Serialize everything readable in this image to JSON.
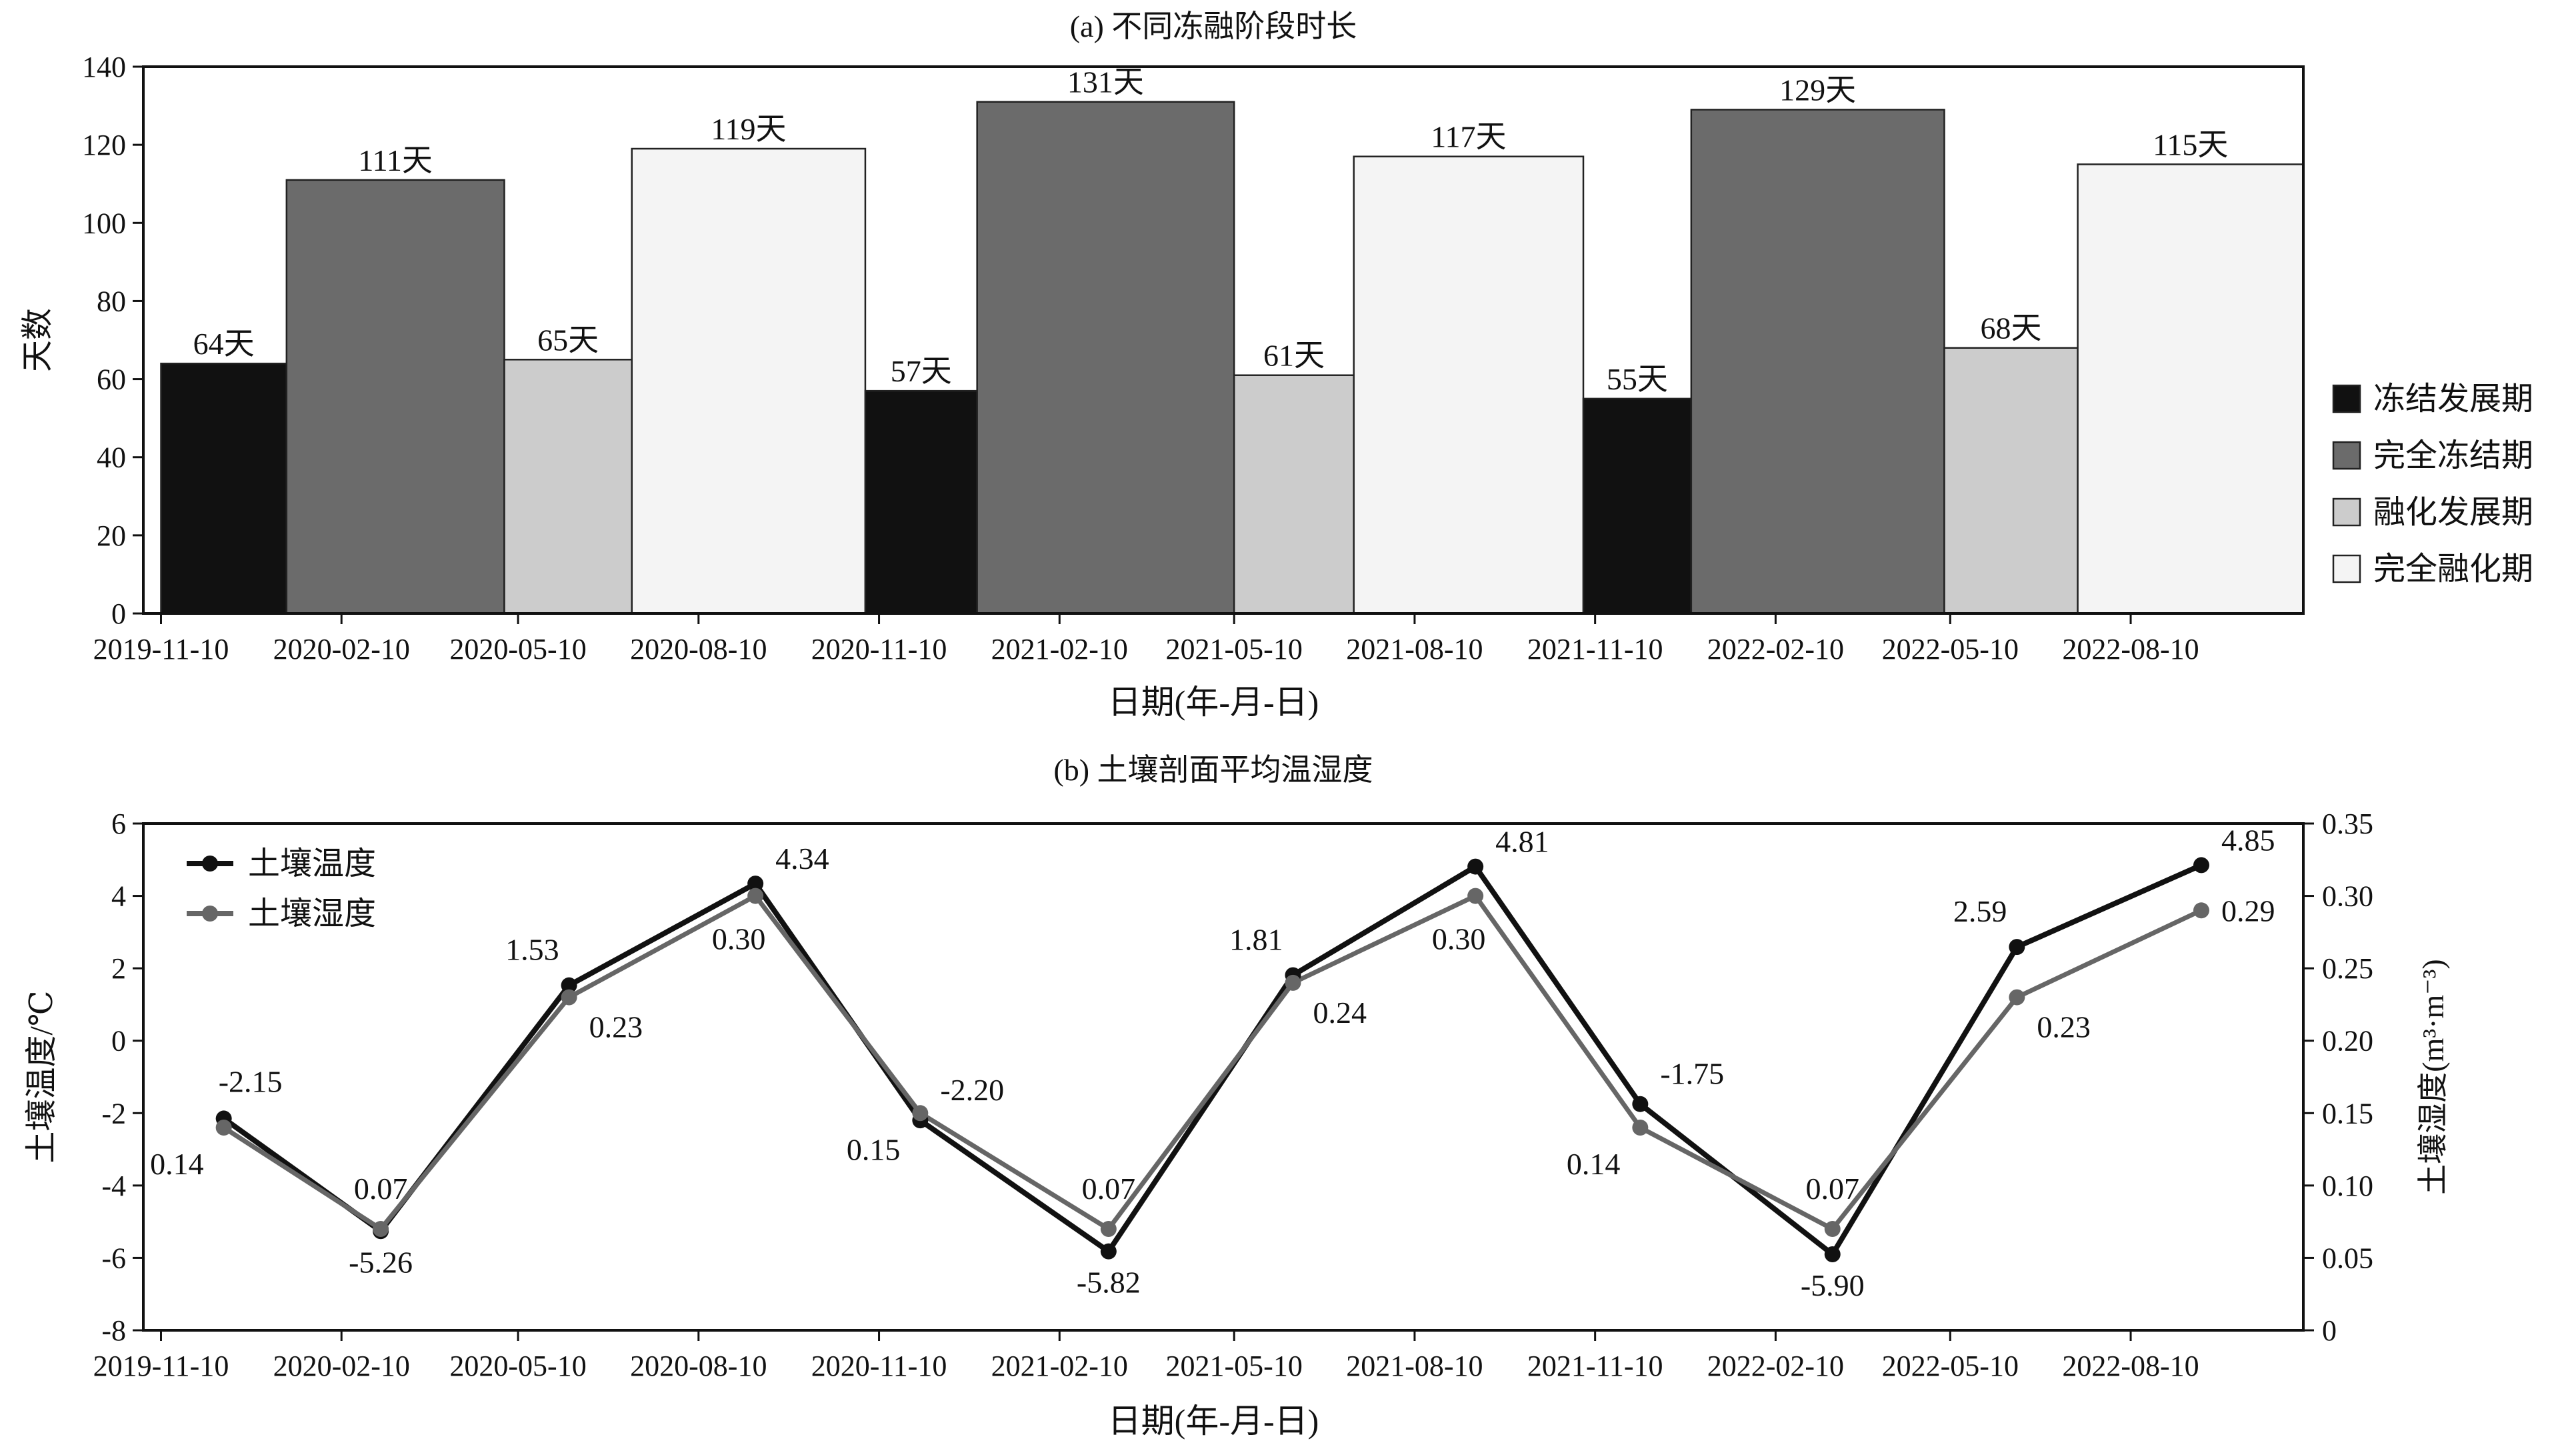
{
  "chart_data": [
    {
      "type": "bar",
      "title": "(a) 不同冻融阶段时长",
      "xlabel": "日期(年-月-日)",
      "ylabel": "天数",
      "ylim": [
        0,
        140
      ],
      "yticks": [
        "0",
        "20",
        "40",
        "60",
        "80",
        "100",
        "120",
        "140"
      ],
      "x_tick_labels": [
        "2019-11-10",
        "2020-02-10",
        "2020-05-10",
        "2020-08-10",
        "2020-11-10",
        "2021-02-10",
        "2021-05-10",
        "2021-08-10",
        "2021-11-10",
        "2022-02-10",
        "2022-05-10",
        "2022-08-10"
      ],
      "grid": false,
      "legend_position": "right",
      "legend": [
        {
          "name": "冻结发展期",
          "color": "#111111"
        },
        {
          "name": "完全冻结期",
          "color": "#6b6b6b"
        },
        {
          "name": "融化发展期",
          "color": "#cccccc"
        },
        {
          "name": "完全融化期",
          "color": "#f4f4f4"
        }
      ],
      "bars": [
        {
          "stage": "冻结发展期",
          "start": "2019-11-10",
          "end": "2020-01-13",
          "value": 64,
          "label": "64天"
        },
        {
          "stage": "完全冻结期",
          "start": "2020-01-13",
          "end": "2020-05-03",
          "value": 111,
          "label": "111天"
        },
        {
          "stage": "融化发展期",
          "start": "2020-05-03",
          "end": "2020-07-07",
          "value": 65,
          "label": "65天"
        },
        {
          "stage": "完全融化期",
          "start": "2020-07-07",
          "end": "2020-11-03",
          "value": 119,
          "label": "119天"
        },
        {
          "stage": "冻结发展期",
          "start": "2020-11-03",
          "end": "2020-12-30",
          "value": 57,
          "label": "57天"
        },
        {
          "stage": "完全冻结期",
          "start": "2020-12-30",
          "end": "2021-05-10",
          "value": 131,
          "label": "131天"
        },
        {
          "stage": "融化发展期",
          "start": "2021-05-10",
          "end": "2021-07-10",
          "value": 61,
          "label": "61天"
        },
        {
          "stage": "完全融化期",
          "start": "2021-07-10",
          "end": "2021-11-04",
          "value": 117,
          "label": "117天"
        },
        {
          "stage": "冻结发展期",
          "start": "2021-11-04",
          "end": "2021-12-29",
          "value": 55,
          "label": "55天"
        },
        {
          "stage": "完全冻结期",
          "start": "2021-12-29",
          "end": "2022-05-07",
          "value": 129,
          "label": "129天"
        },
        {
          "stage": "融化发展期",
          "start": "2022-05-07",
          "end": "2022-07-14",
          "value": 68,
          "label": "68天"
        },
        {
          "stage": "完全融化期",
          "start": "2022-07-14",
          "end": "2022-11-06",
          "value": 115,
          "label": "115天"
        }
      ]
    },
    {
      "type": "line",
      "title": "(b) 土壤剖面平均温湿度",
      "xlabel": "日期(年-月-日)",
      "ylabel": "土壤温度/℃",
      "ylabel_right": "土壤湿度(m³·m⁻³)",
      "ylim": [
        -8,
        6
      ],
      "yticks": [
        "-8",
        "-6",
        "-4",
        "-2",
        "0",
        "2",
        "4",
        "6"
      ],
      "ylim_right": [
        0,
        0.35
      ],
      "yticks_right": [
        "0",
        "0.05",
        "0.10",
        "0.15",
        "0.20",
        "0.25",
        "0.30",
        "0.35"
      ],
      "x_tick_labels": [
        "2019-11-10",
        "2020-02-10",
        "2020-05-10",
        "2020-08-10",
        "2020-11-10",
        "2021-02-10",
        "2021-05-10",
        "2021-08-10",
        "2021-11-10",
        "2022-02-10",
        "2022-05-10",
        "2022-08-10"
      ],
      "grid": false,
      "legend_position": "top-left",
      "x": [
        "2019-12-12",
        "2020-03-01",
        "2020-06-05",
        "2020-09-08",
        "2020-12-01",
        "2021-03-07",
        "2021-06-09",
        "2021-09-10",
        "2021-12-03",
        "2022-03-11",
        "2022-06-13",
        "2022-09-15"
      ],
      "series": [
        {
          "name": "土壤温度",
          "axis": "left",
          "color": "#111111",
          "values": [
            -2.15,
            -5.26,
            1.53,
            4.34,
            -2.2,
            -5.82,
            1.81,
            4.81,
            -1.75,
            -5.9,
            2.59,
            4.85
          ],
          "labels": [
            "-2.15",
            "-5.26",
            "1.53",
            "4.34",
            "-2.20",
            "-5.82",
            "1.81",
            "4.81",
            "-1.75",
            "-5.90",
            "2.59",
            "4.85"
          ]
        },
        {
          "name": "土壤湿度",
          "axis": "right",
          "color": "#666666",
          "values": [
            0.14,
            0.07,
            0.23,
            0.3,
            0.15,
            0.07,
            0.24,
            0.3,
            0.14,
            0.07,
            0.23,
            0.29
          ],
          "labels": [
            "0.14",
            "0.07",
            "0.23",
            "0.30",
            "0.15",
            "0.07",
            "0.24",
            "0.30",
            "0.14",
            "0.07",
            "0.23",
            "0.29"
          ]
        }
      ]
    }
  ]
}
